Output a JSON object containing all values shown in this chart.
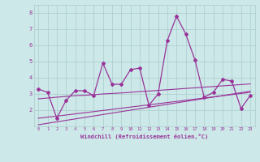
{
  "x": [
    0,
    1,
    2,
    3,
    4,
    5,
    6,
    7,
    8,
    9,
    10,
    11,
    12,
    13,
    14,
    15,
    16,
    17,
    18,
    19,
    20,
    21,
    22,
    23
  ],
  "y_main": [
    3.3,
    3.1,
    1.5,
    2.6,
    3.2,
    3.2,
    2.9,
    4.9,
    3.6,
    3.6,
    4.5,
    4.6,
    2.3,
    3.0,
    6.3,
    7.8,
    6.7,
    5.1,
    2.8,
    3.1,
    3.9,
    3.8,
    2.1,
    2.9
  ],
  "y_trend1": [
    2.7,
    2.75,
    2.8,
    2.85,
    2.9,
    2.92,
    2.95,
    3.0,
    3.03,
    3.06,
    3.1,
    3.15,
    3.18,
    3.22,
    3.26,
    3.3,
    3.34,
    3.38,
    3.42,
    3.46,
    3.5,
    3.54,
    3.58,
    3.62
  ],
  "y_trend2": [
    1.5,
    1.57,
    1.63,
    1.7,
    1.77,
    1.84,
    1.91,
    1.98,
    2.05,
    2.12,
    2.19,
    2.26,
    2.33,
    2.4,
    2.47,
    2.54,
    2.61,
    2.68,
    2.75,
    2.82,
    2.89,
    2.96,
    3.03,
    3.1
  ],
  "y_trend3": [
    1.1,
    1.19,
    1.28,
    1.37,
    1.46,
    1.55,
    1.64,
    1.73,
    1.82,
    1.91,
    2.0,
    2.09,
    2.18,
    2.27,
    2.36,
    2.45,
    2.54,
    2.63,
    2.72,
    2.81,
    2.9,
    2.99,
    3.08,
    3.17
  ],
  "line_color": "#993399",
  "bg_color": "#cce8e8",
  "grid_color": "#aacccc",
  "xlabel": "Windchill (Refroidissement éolien,°C)",
  "ylim": [
    1.0,
    8.5
  ],
  "xlim": [
    -0.5,
    23.5
  ],
  "yticks": [
    2,
    3,
    4,
    5,
    6,
    7,
    8
  ],
  "xticks": [
    0,
    1,
    2,
    3,
    4,
    5,
    6,
    7,
    8,
    9,
    10,
    11,
    12,
    13,
    14,
    15,
    16,
    17,
    18,
    19,
    20,
    21,
    22,
    23
  ]
}
